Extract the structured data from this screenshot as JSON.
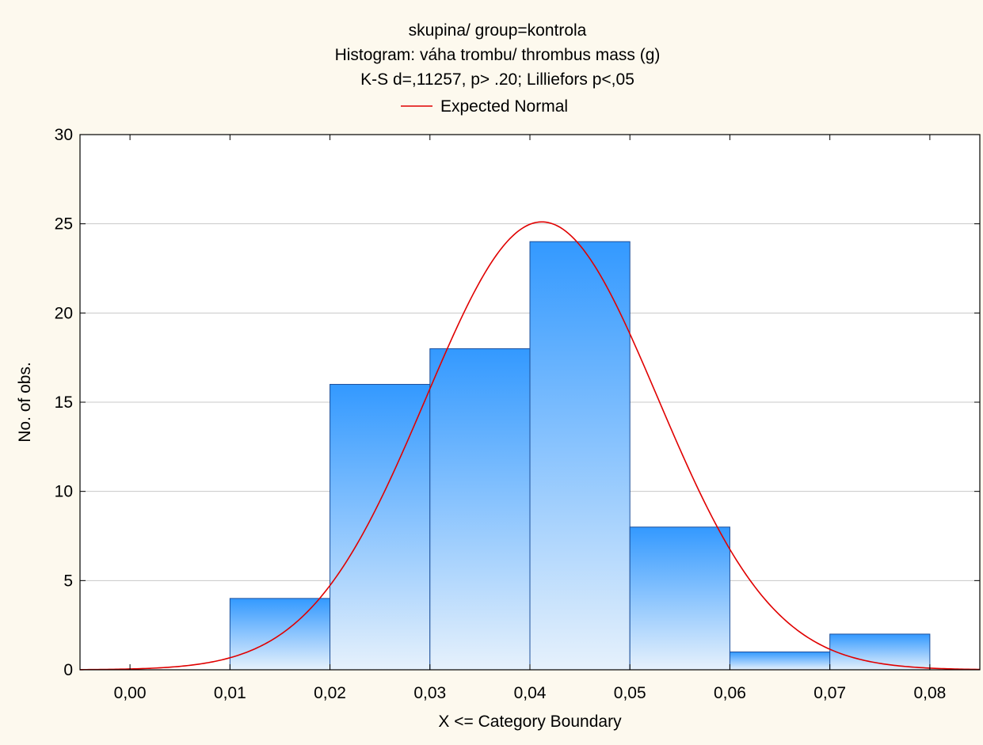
{
  "chart_data": {
    "type": "bar",
    "title_lines": [
      "skupina/ group=kontrola",
      "Histogram: váha trombu/ thrombus mass (g)",
      "K-S d=,11257, p> .20; Lilliefors p<,05"
    ],
    "legend_label": "Expected Normal",
    "xlabel": "X <= Category Boundary",
    "ylabel": "No. of obs.",
    "xlim": [
      -0.005,
      0.085
    ],
    "ylim": [
      0,
      30
    ],
    "x_ticks": [
      0.0,
      0.01,
      0.02,
      0.03,
      0.04,
      0.05,
      0.06,
      0.07,
      0.08
    ],
    "x_tick_labels": [
      "0,00",
      "0,01",
      "0,02",
      "0,03",
      "0,04",
      "0,05",
      "0,06",
      "0,07",
      "0,08"
    ],
    "y_ticks": [
      0,
      5,
      10,
      15,
      20,
      25,
      30
    ],
    "y_tick_labels": [
      "0",
      "5",
      "10",
      "15",
      "20",
      "25",
      "30"
    ],
    "bins": [
      {
        "from": 0.01,
        "to": 0.02,
        "count": 4
      },
      {
        "from": 0.02,
        "to": 0.03,
        "count": 16
      },
      {
        "from": 0.03,
        "to": 0.04,
        "count": 18
      },
      {
        "from": 0.04,
        "to": 0.05,
        "count": 24
      },
      {
        "from": 0.05,
        "to": 0.06,
        "count": 8
      },
      {
        "from": 0.06,
        "to": 0.07,
        "count": 1
      },
      {
        "from": 0.07,
        "to": 0.08,
        "count": 2
      }
    ],
    "normal_curve": {
      "mean": 0.0412,
      "sd": 0.0116,
      "n": 73,
      "bin_width": 0.01
    },
    "grid": true,
    "legend_position": "top-center",
    "colors": {
      "bar_top": "#3399ff",
      "bar_bottom": "#e6f1fc",
      "bar_edge": "#1d4f9a",
      "curve": "#e00000",
      "grid": "#c8c8c8",
      "background": "#fdf9ee",
      "plot_background": "#ffffff"
    }
  }
}
